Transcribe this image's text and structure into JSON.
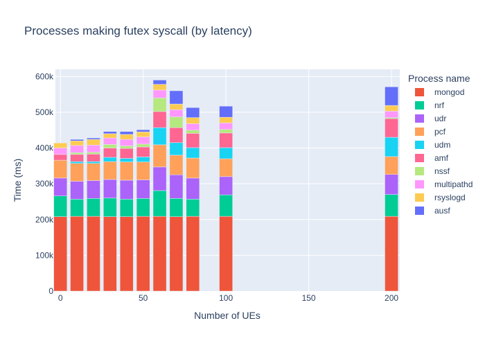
{
  "chart_data": {
    "type": "bar",
    "stacked": true,
    "title": "Processes making futex syscall (by latency)",
    "xlabel": "Number of UEs",
    "ylabel": "Time (ms)",
    "xlim": [
      -3,
      205
    ],
    "ylim": [
      0,
      620000
    ],
    "x_ticks": [
      0,
      50,
      100,
      150,
      200
    ],
    "x_tick_labels": [
      "0",
      "50",
      "100",
      "150",
      "200"
    ],
    "y_ticks": [
      0,
      100000,
      200000,
      300000,
      400000,
      500000,
      600000
    ],
    "y_tick_labels": [
      "0",
      "100k",
      "200k",
      "300k",
      "400k",
      "500k",
      "600k"
    ],
    "grid": true,
    "legend_title": "Process name",
    "legend_position": "right",
    "x": [
      0,
      10,
      20,
      30,
      40,
      50,
      60,
      70,
      80,
      100,
      200
    ],
    "series": [
      {
        "name": "mongod",
        "color": "#EF553B",
        "values": [
          208000,
          209000,
          209000,
          208000,
          208000,
          209000,
          209000,
          208000,
          209000,
          209000,
          209000
        ]
      },
      {
        "name": "nrf",
        "color": "#00CC96",
        "values": [
          58000,
          48000,
          50000,
          52000,
          49000,
          50000,
          72000,
          51000,
          48000,
          60000,
          61000
        ]
      },
      {
        "name": "udr",
        "color": "#AB63FA",
        "values": [
          50000,
          50000,
          50000,
          52000,
          53000,
          52000,
          66000,
          66000,
          59000,
          51000,
          56000
        ]
      },
      {
        "name": "pcf",
        "color": "#FFA15A",
        "values": [
          50000,
          50000,
          48000,
          50000,
          51000,
          50000,
          62000,
          55000,
          56000,
          50000,
          50000
        ]
      },
      {
        "name": "udm",
        "color": "#19D3F3",
        "values": [
          0,
          5000,
          5000,
          12000,
          10000,
          14000,
          48000,
          35000,
          29000,
          31000,
          54000
        ]
      },
      {
        "name": "amf",
        "color": "#FF6692",
        "values": [
          16000,
          20000,
          21000,
          26000,
          28000,
          28000,
          45000,
          42000,
          40000,
          41000,
          52000
        ]
      },
      {
        "name": "nssf",
        "color": "#B6E880",
        "values": [
          0,
          5000,
          5000,
          10000,
          7000,
          8000,
          38000,
          30000,
          9000,
          10000,
          3000
        ]
      },
      {
        "name": "multipathd",
        "color": "#FF97FF",
        "values": [
          18000,
          20000,
          20000,
          18000,
          18000,
          20000,
          22000,
          20000,
          18000,
          18000,
          18000
        ]
      },
      {
        "name": "rsyslogd",
        "color": "#FECB52",
        "values": [
          14000,
          13000,
          16000,
          12000,
          14000,
          14000,
          16000,
          16000,
          17000,
          16000,
          16000
        ]
      },
      {
        "name": "ausf",
        "color": "#636EFA",
        "values": [
          0,
          4000,
          4000,
          6000,
          8000,
          6000,
          12000,
          37000,
          28000,
          31000,
          52000
        ]
      }
    ]
  }
}
